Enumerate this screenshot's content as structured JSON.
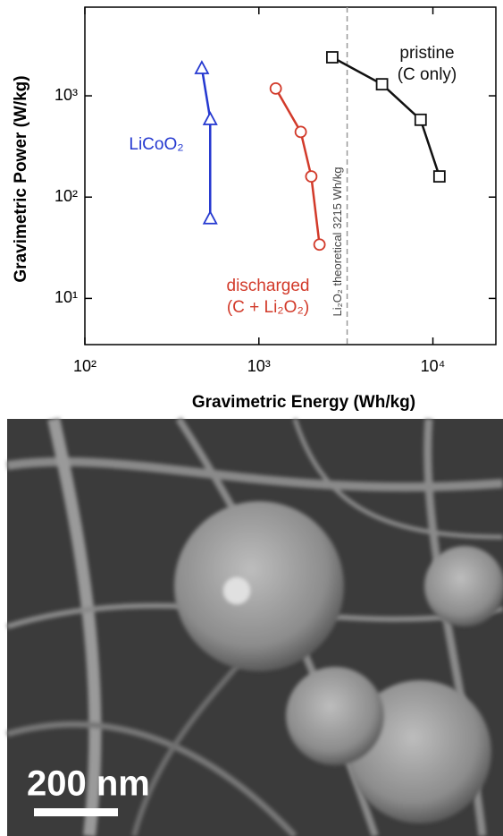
{
  "chart_data": {
    "type": "line",
    "x_label": "Gravimetric Energy  (Wh/kg)",
    "y_label": "Gravimetric Power  (W/kg)",
    "xlog": true,
    "ylog": true,
    "xlim": [
      100,
      23000
    ],
    "ylim": [
      3.5,
      7500
    ],
    "xticks": [
      {
        "value": 100,
        "label": "10²"
      },
      {
        "value": 1000,
        "label": "10³"
      },
      {
        "value": 10000,
        "label": "10⁴"
      }
    ],
    "yticks": [
      {
        "value": 10,
        "label": "10¹"
      },
      {
        "value": 100,
        "label": "10²"
      },
      {
        "value": 1000,
        "label": "10³"
      }
    ],
    "series": [
      {
        "name": "LiCoO₂",
        "color": "#2438d0",
        "marker": "triangle",
        "x": [
          470,
          525,
          525
        ],
        "values": [
          1880,
          590,
          62
        ]
      },
      {
        "name": "discharged\n(C + Li₂O₂)",
        "color": "#d23a2a",
        "marker": "circle",
        "x": [
          1250,
          1740,
          2000,
          2230
        ],
        "values": [
          1180,
          440,
          160,
          34
        ]
      },
      {
        "name": "pristine\n(C only)",
        "color": "#111111",
        "marker": "square",
        "x": [
          2640,
          5100,
          8500,
          10900
        ],
        "values": [
          2400,
          1300,
          580,
          160
        ]
      }
    ],
    "reference_lines": [
      {
        "x": 3215,
        "label": "Li₂O₂ theoretical  3215 Wh/kg"
      }
    ]
  },
  "image": {
    "scale_bar": "200 nm"
  }
}
